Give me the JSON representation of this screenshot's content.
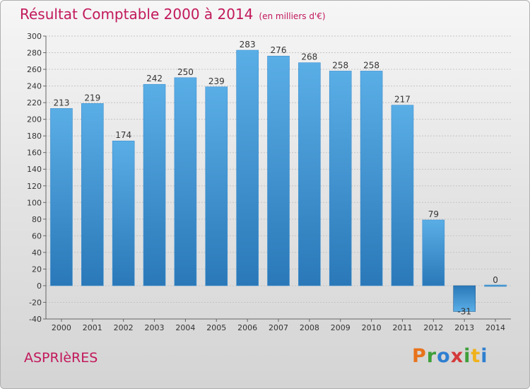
{
  "title": "Résultat Comptable 2000 à 2014",
  "unit": "(en milliers d'€)",
  "commune": "ASPRIèRES",
  "logo": {
    "letters": [
      "P",
      "r",
      "o",
      "x",
      "i",
      "t",
      "i"
    ],
    "colors": [
      "#e8731c",
      "#3f9f3a",
      "#2f7fd0",
      "#d43a3a",
      "#3f9f3a",
      "#f0b21c",
      "#2f7fd0"
    ]
  },
  "chart_data": {
    "type": "bar",
    "categories": [
      "2000",
      "2001",
      "2002",
      "2003",
      "2004",
      "2005",
      "2006",
      "2007",
      "2008",
      "2009",
      "2010",
      "2011",
      "2012",
      "2013",
      "2014"
    ],
    "values": [
      213,
      219,
      174,
      242,
      250,
      239,
      283,
      276,
      268,
      258,
      258,
      217,
      79,
      -31,
      0
    ],
    "value_labels": [
      "213",
      "219",
      "174",
      "242",
      "250",
      "239",
      "283",
      "276",
      "268",
      "258",
      "258",
      "217",
      "79",
      "-31",
      "0"
    ],
    "ylim": [
      -40,
      300
    ],
    "yticks": [
      -40,
      -20,
      0,
      20,
      40,
      60,
      80,
      100,
      120,
      140,
      160,
      180,
      200,
      220,
      240,
      260,
      280,
      300
    ],
    "grid": true,
    "bar_color_top": "#5aaee6",
    "bar_color_bottom": "#2a78b8",
    "negative_color_top": "#2a78b8",
    "negative_color_bottom": "#5aaee6"
  }
}
